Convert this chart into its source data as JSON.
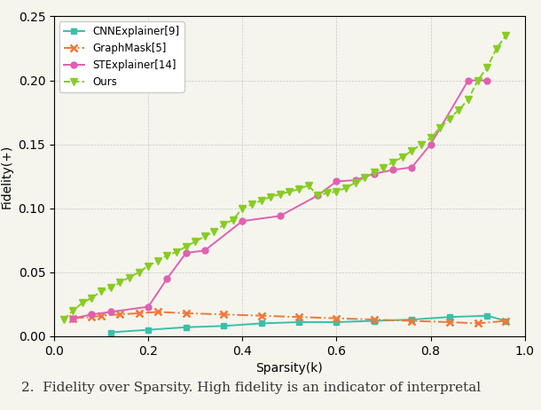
{
  "title": "",
  "xlabel": "Sparsity(k)",
  "ylabel": "Fidelity(+)",
  "xlim": [
    0.0,
    1.0
  ],
  "ylim": [
    0.0,
    0.25
  ],
  "yticks": [
    0.0,
    0.05,
    0.1,
    0.15,
    0.2,
    0.25
  ],
  "xticks": [
    0.0,
    0.2,
    0.4,
    0.6,
    0.8,
    1.0
  ],
  "grid_color": "#aaaaaa",
  "background_color": "#f5f5ee",
  "caption": "2.  Fidelity over Sparsity. High fidelity is an indicator of interpretal",
  "caption_fontsize": 11,
  "series": [
    {
      "label": "CNNExplainer[9]",
      "color": "#3abfaa",
      "linestyle": "-",
      "marker": "s",
      "markersize": 4,
      "linewidth": 1.4,
      "x": [
        0.12,
        0.2,
        0.28,
        0.36,
        0.44,
        0.52,
        0.6,
        0.68,
        0.76,
        0.84,
        0.92,
        0.96
      ],
      "y": [
        0.003,
        0.005,
        0.007,
        0.008,
        0.01,
        0.011,
        0.011,
        0.012,
        0.013,
        0.015,
        0.016,
        0.012
      ]
    },
    {
      "label": "GraphMask[5]",
      "color": "#f07838",
      "linestyle": "-.",
      "marker": "x",
      "markersize": 6,
      "linewidth": 1.4,
      "x": [
        0.04,
        0.08,
        0.1,
        0.14,
        0.18,
        0.22,
        0.28,
        0.36,
        0.44,
        0.52,
        0.6,
        0.68,
        0.76,
        0.84,
        0.9,
        0.96
      ],
      "y": [
        0.014,
        0.015,
        0.016,
        0.017,
        0.018,
        0.019,
        0.018,
        0.017,
        0.016,
        0.015,
        0.014,
        0.013,
        0.012,
        0.011,
        0.01,
        0.012
      ]
    },
    {
      "label": "STExplainer[14]",
      "color": "#e060b0",
      "linestyle": "-",
      "marker": "o",
      "markersize": 5,
      "linewidth": 1.4,
      "x": [
        0.04,
        0.08,
        0.12,
        0.2,
        0.24,
        0.28,
        0.32,
        0.4,
        0.48,
        0.56,
        0.6,
        0.64,
        0.68,
        0.72,
        0.76,
        0.8,
        0.88,
        0.92
      ],
      "y": [
        0.014,
        0.017,
        0.019,
        0.023,
        0.045,
        0.065,
        0.067,
        0.09,
        0.094,
        0.11,
        0.121,
        0.122,
        0.127,
        0.13,
        0.132,
        0.15,
        0.2,
        0.2
      ]
    },
    {
      "label": "Ours",
      "color": "#88cc22",
      "linestyle": "--",
      "marker": "v",
      "markersize": 6,
      "linewidth": 1.4,
      "x": [
        0.02,
        0.04,
        0.06,
        0.08,
        0.1,
        0.12,
        0.14,
        0.16,
        0.18,
        0.2,
        0.22,
        0.24,
        0.26,
        0.28,
        0.3,
        0.32,
        0.34,
        0.36,
        0.38,
        0.4,
        0.42,
        0.44,
        0.46,
        0.48,
        0.5,
        0.52,
        0.54,
        0.56,
        0.58,
        0.6,
        0.62,
        0.64,
        0.66,
        0.68,
        0.7,
        0.72,
        0.74,
        0.76,
        0.78,
        0.8,
        0.82,
        0.84,
        0.86,
        0.88,
        0.9,
        0.92,
        0.94,
        0.96
      ],
      "y": [
        0.013,
        0.02,
        0.026,
        0.03,
        0.035,
        0.038,
        0.042,
        0.046,
        0.05,
        0.055,
        0.059,
        0.063,
        0.066,
        0.07,
        0.074,
        0.078,
        0.082,
        0.087,
        0.091,
        0.1,
        0.103,
        0.106,
        0.109,
        0.111,
        0.113,
        0.115,
        0.118,
        0.11,
        0.112,
        0.113,
        0.116,
        0.12,
        0.124,
        0.128,
        0.132,
        0.136,
        0.14,
        0.145,
        0.15,
        0.155,
        0.163,
        0.17,
        0.177,
        0.185,
        0.2,
        0.21,
        0.225,
        0.235
      ]
    }
  ],
  "legend": {
    "loc": "upper left",
    "fontsize": 8.5,
    "frameon": true,
    "framealpha": 1.0,
    "edgecolor": "#cccccc"
  }
}
